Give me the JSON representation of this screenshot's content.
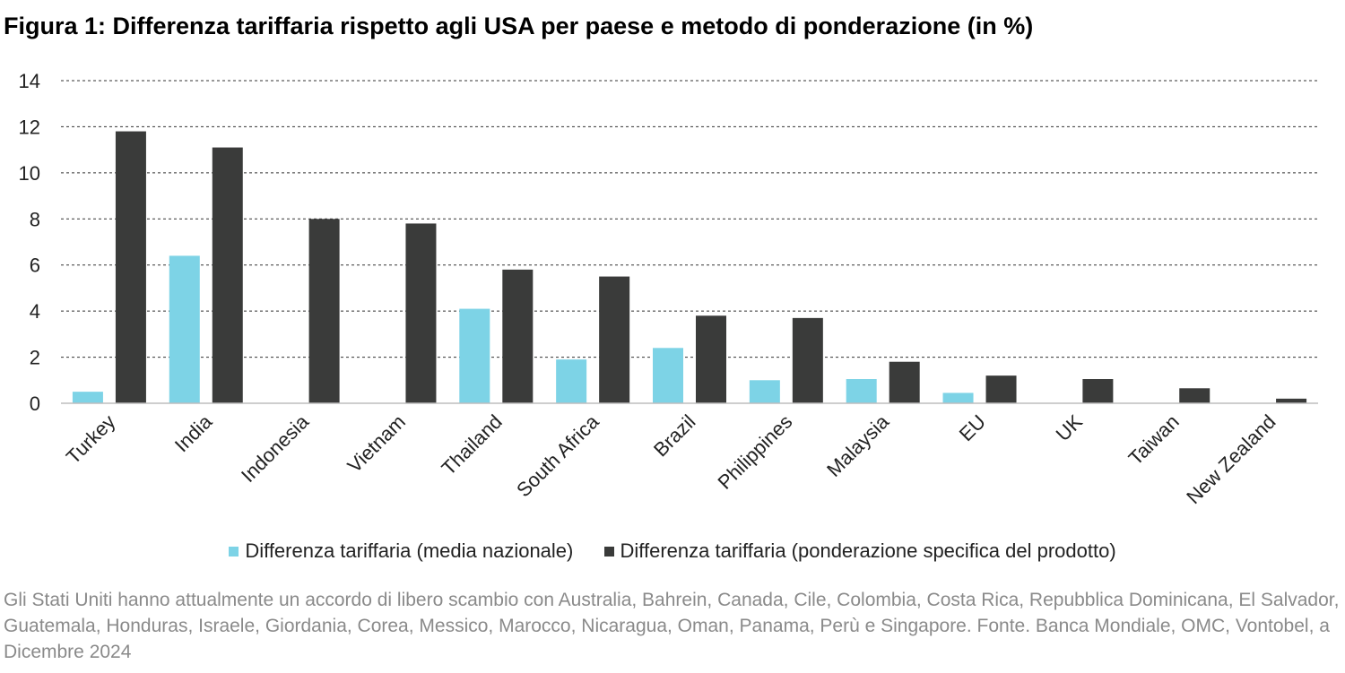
{
  "title": "Figura 1: Differenza tariffaria rispetto agli USA per paese e metodo di ponderazione (in %)",
  "chart_data": {
    "type": "bar",
    "categories": [
      "Turkey",
      "India",
      "Indonesia",
      "Vietnam",
      "Thailand",
      "South Africa",
      "Brazil",
      "Philippines",
      "Malaysia",
      "EU",
      "UK",
      "Taiwan",
      "New Zealand"
    ],
    "series": [
      {
        "name": "Differenza tariffaria (media nazionale)",
        "color": "#7dd3e6",
        "values": [
          0.5,
          6.4,
          0,
          0,
          4.1,
          1.9,
          2.4,
          1.0,
          1.05,
          0.45,
          0,
          0,
          0
        ]
      },
      {
        "name": "Differenza tariffaria (ponderazione specifica del prodotto)",
        "color": "#3a3b3a",
        "values": [
          11.8,
          11.1,
          8.0,
          7.8,
          5.8,
          5.5,
          3.8,
          3.7,
          1.8,
          1.2,
          1.05,
          0.65,
          0.2
        ]
      }
    ],
    "ylim": [
      0,
      14
    ],
    "yticks": [
      "0",
      "2",
      "4",
      "6",
      "8",
      "10",
      "12",
      "14"
    ],
    "grid": "dashed",
    "legend": "bottom"
  },
  "note": "Gli Stati Uniti hanno attualmente un accordo di libero scambio con Australia, Bahrein, Canada, Cile, Colombia, Costa Rica, Repubblica Dominicana, El Salvador, Guatemala, Honduras, Israele, Giordania, Corea, Messico, Marocco, Nicaragua, Oman, Panama, Perù e Singapore. Fonte. Banca Mondiale, OMC, Vontobel, a Dicembre 2024"
}
